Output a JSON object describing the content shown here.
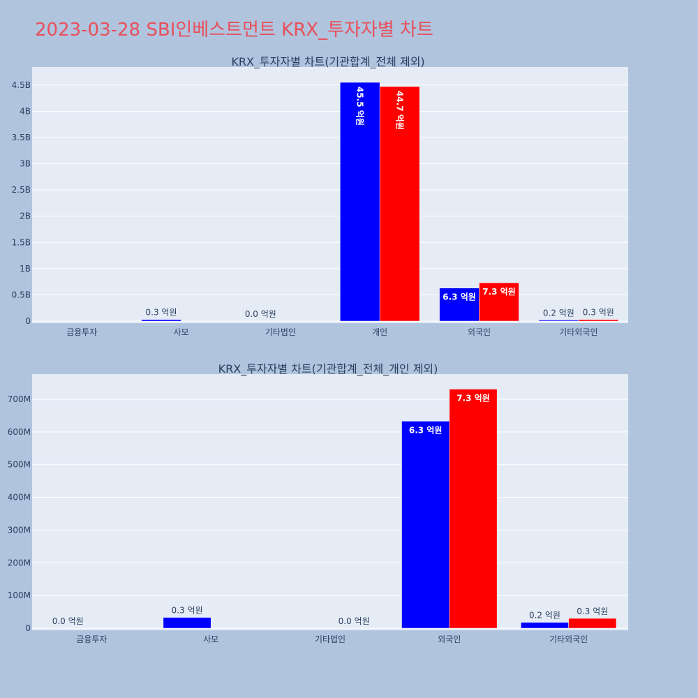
{
  "page_title": "2023-03-28 SBI인베스트먼트 KRX_투자자별 차트",
  "colors": {
    "page_bg": "#b0c4de",
    "plot_bg": "#e5ecf6",
    "title": "#e8505b",
    "series_1": "#0000ff",
    "series_2": "#ff0000"
  },
  "chart_data": [
    {
      "type": "bar",
      "title": "KRX_투자자별 차트(기관합계_전체 제외)",
      "categories": [
        "금융투자",
        "사모",
        "기타법인",
        "개인",
        "외국인",
        "기타외국인"
      ],
      "ylim": [
        0,
        4800000000
      ],
      "ytick_values": [
        0,
        500000000,
        1000000000,
        1500000000,
        2000000000,
        2500000000,
        3000000000,
        3500000000,
        4000000000,
        4500000000
      ],
      "ytick_labels": [
        "0",
        "0.5B",
        "1B",
        "1.5B",
        "2B",
        "2.5B",
        "3B",
        "3.5B",
        "4B",
        "4.5B"
      ],
      "grid": true,
      "series": [
        {
          "values": [
            null,
            30000000,
            0,
            4550000000,
            630000000,
            20000000
          ],
          "labels": [
            "",
            "0.3 억원",
            "0.0 억원",
            "45.5 억원",
            "6.3 억원",
            "0.2 억원"
          ]
        },
        {
          "values": [
            null,
            null,
            null,
            4470000000,
            730000000,
            30000000
          ],
          "labels": [
            "",
            "",
            "",
            "44.7 억원",
            "7.3 억원",
            "0.3 억원"
          ]
        }
      ]
    },
    {
      "type": "bar",
      "title": "KRX_투자자별 차트(기관합계_전체_개인 제외)",
      "categories": [
        "금융투자",
        "사모",
        "기타법인",
        "외국인",
        "기타외국인"
      ],
      "ylim": [
        0,
        760000000
      ],
      "ytick_values": [
        0,
        100000000,
        200000000,
        300000000,
        400000000,
        500000000,
        600000000,
        700000000
      ],
      "ytick_labels": [
        "0",
        "100M",
        "200M",
        "300M",
        "400M",
        "500M",
        "600M",
        "700M"
      ],
      "grid": true,
      "series": [
        {
          "values": [
            0,
            33000000,
            null,
            633000000,
            18000000
          ],
          "labels": [
            "0.0 억원",
            "0.3 억원",
            "",
            "6.3 억원",
            "0.2 억원"
          ]
        },
        {
          "values": [
            null,
            null,
            0,
            731000000,
            30000000
          ],
          "labels": [
            "",
            "",
            "0.0 억원",
            "7.3 억원",
            "0.3 억원"
          ]
        }
      ]
    }
  ]
}
